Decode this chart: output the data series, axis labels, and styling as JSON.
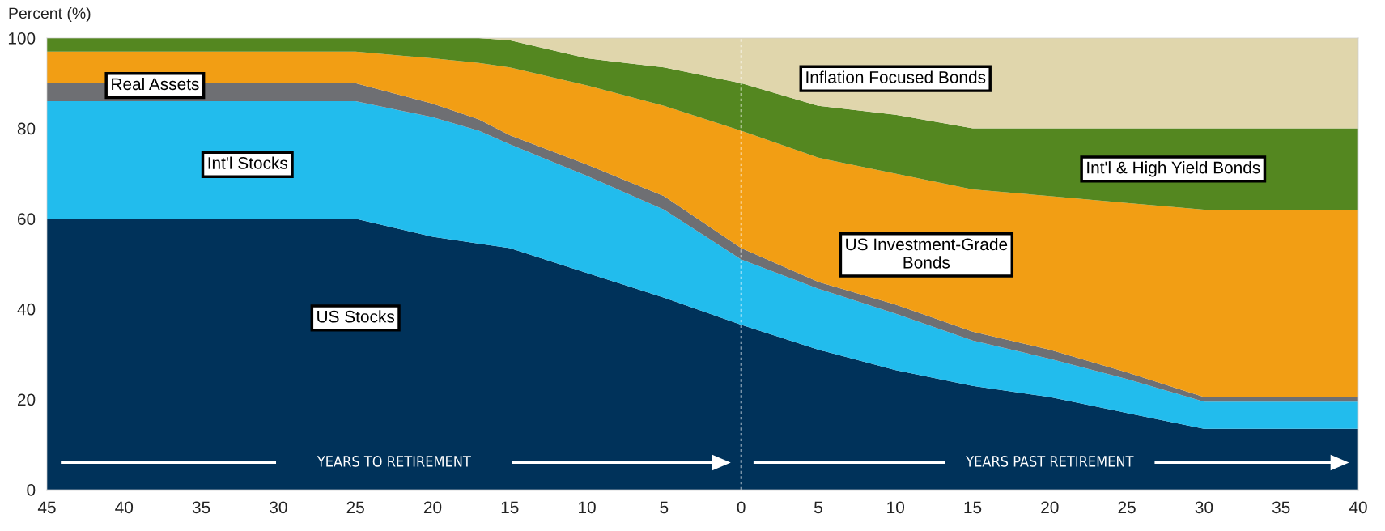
{
  "chart_data": {
    "type": "area",
    "stacked": true,
    "ylabel": "Percent (%)",
    "x": [
      -45,
      -25,
      -20,
      -17,
      -15,
      -10,
      -5,
      0,
      5,
      10,
      15,
      20,
      25,
      30,
      40
    ],
    "series": [
      {
        "name": "US Stocks",
        "color": "#00325a",
        "values": [
          60,
          60,
          56,
          54.5,
          53.5,
          48,
          42.5,
          36.5,
          31,
          26.5,
          23,
          20.5,
          17,
          13.5,
          13.5
        ]
      },
      {
        "name": "Int'l Stocks",
        "color": "#22bced",
        "values": [
          26,
          26,
          26.5,
          25,
          23,
          21.5,
          19.5,
          14.5,
          13.5,
          12.5,
          10,
          8.5,
          7.5,
          6,
          6
        ]
      },
      {
        "name": "Real Assets",
        "color": "#6e6f73",
        "values": [
          4,
          4,
          3,
          2.5,
          2,
          2.5,
          3,
          2.5,
          1.5,
          2,
          2,
          2,
          1.5,
          1,
          1
        ]
      },
      {
        "name": "US Investment-Grade\nBonds",
        "color": "#f29e14",
        "values": [
          7,
          7,
          10,
          12.5,
          15,
          17.5,
          20,
          26,
          27.5,
          29,
          31.5,
          34,
          37.5,
          41.5,
          41.5
        ]
      },
      {
        "name": "Int'l & High Yield Bonds",
        "color": "#548720",
        "values": [
          3,
          3,
          4.5,
          5.5,
          6,
          6,
          8.5,
          10.5,
          11.5,
          13,
          13.5,
          15,
          16.5,
          18,
          18
        ]
      },
      {
        "name": "Inflation Focused Bonds",
        "color": "#e0d6ac",
        "values": [
          0,
          0,
          0,
          0,
          0.5,
          4.5,
          6.5,
          10,
          15,
          17,
          20,
          20,
          20,
          20,
          20
        ]
      }
    ],
    "xlim": [
      -45,
      40
    ],
    "xticks": [
      {
        "value": -45,
        "label": "45"
      },
      {
        "value": -40,
        "label": "40"
      },
      {
        "value": -35,
        "label": "35"
      },
      {
        "value": -30,
        "label": "30"
      },
      {
        "value": -25,
        "label": "25"
      },
      {
        "value": -20,
        "label": "20"
      },
      {
        "value": -15,
        "label": "15"
      },
      {
        "value": -10,
        "label": "10"
      },
      {
        "value": -5,
        "label": "5"
      },
      0,
      5,
      10,
      15,
      20,
      25,
      30,
      35,
      40
    ],
    "ylim": [
      0,
      100
    ],
    "yticks": [
      0,
      20,
      40,
      60,
      80,
      100
    ],
    "ref_lines": [
      {
        "axis": "x",
        "value": 0,
        "color": "#ffffff",
        "line_style": "dashed"
      }
    ],
    "annotations": [
      "YEARS TO RETIREMENT",
      "YEARS PAST RETIREMENT"
    ],
    "grid": false,
    "legend": false
  }
}
